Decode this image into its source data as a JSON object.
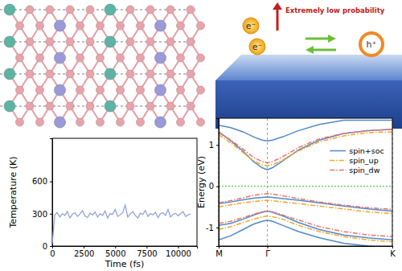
{
  "chart_data": [
    {
      "type": "line",
      "x_label": "Time (fs)",
      "y_label": "Temperature (K)",
      "x": [
        0,
        200,
        400,
        600,
        800,
        1000,
        1200,
        1400,
        1600,
        1800,
        2000,
        2200,
        2400,
        2600,
        2800,
        3000,
        3200,
        3400,
        3600,
        3800,
        4000,
        4200,
        4400,
        4600,
        4800,
        5000,
        5200,
        5400,
        5600,
        5800,
        6000,
        6200,
        6400,
        6600,
        6800,
        7000,
        7200,
        7400,
        7600,
        7800,
        8000,
        8200,
        8400,
        8600,
        8800,
        9000,
        9200,
        9400,
        9600,
        9800,
        10000,
        10200,
        10400,
        10600,
        10800,
        11000
      ],
      "values": [
        20,
        290,
        310,
        270,
        300,
        285,
        320,
        260,
        295,
        310,
        275,
        300,
        330,
        280,
        265,
        305,
        290,
        315,
        270,
        300,
        285,
        325,
        260,
        300,
        295,
        340,
        275,
        290,
        310,
        380,
        270,
        300,
        320,
        285,
        260,
        305,
        295,
        330,
        275,
        300,
        290,
        315,
        265,
        300,
        310,
        285,
        340,
        270,
        295,
        305,
        280,
        300,
        320,
        275,
        290,
        300
      ],
      "color": "#8c9ed6",
      "xlim": [
        0,
        11500
      ],
      "xticks": [
        0,
        2500,
        5000,
        7500,
        10000
      ],
      "ylim": [
        0,
        1000
      ],
      "yticks": [
        0,
        300,
        600
      ],
      "grid": false
    },
    {
      "type": "line",
      "y_label": "Energy (eV)",
      "x": [
        0,
        0.07,
        0.14,
        0.2,
        0.25,
        0.28,
        0.31,
        0.37,
        0.46,
        0.58,
        0.72,
        0.86,
        1.0
      ],
      "xlim": [
        0,
        1
      ],
      "xticks": [
        {
          "value": 0,
          "label": "M"
        },
        {
          "value": 0.28,
          "label": "Γ"
        },
        {
          "value": 1,
          "label": "K"
        }
      ],
      "ylim": [
        -1.45,
        1.65
      ],
      "yticks": [
        -1,
        0,
        1
      ],
      "grid": "x",
      "legend": "right",
      "fermi_level": 0,
      "series": [
        {
          "name": "spin+soc",
          "color": "#4f8ac9",
          "line_style": "solid",
          "values": [
            [
              1.32,
              1.1,
              0.85,
              0.6,
              0.45,
              0.4,
              0.45,
              0.62,
              0.88,
              1.12,
              1.28,
              1.35,
              1.38
            ],
            [
              1.48,
              1.42,
              1.32,
              1.2,
              1.12,
              1.1,
              1.12,
              1.2,
              1.35,
              1.5,
              1.6,
              1.6,
              1.6
            ],
            [
              -0.42,
              -0.38,
              -0.33,
              -0.29,
              -0.27,
              -0.26,
              -0.27,
              -0.3,
              -0.34,
              -0.4,
              -0.48,
              -0.55,
              -0.6
            ],
            [
              -0.95,
              -0.9,
              -0.8,
              -0.7,
              -0.63,
              -0.6,
              -0.63,
              -0.72,
              -0.88,
              -1.05,
              -1.18,
              -1.25,
              -1.3
            ],
            [
              -1.3,
              -1.2,
              -1.05,
              -0.92,
              -0.85,
              -0.82,
              -0.85,
              -0.95,
              -1.1,
              -1.25,
              -1.38,
              -1.45,
              -1.5
            ]
          ]
        },
        {
          "name": "spin_up",
          "color": "#f5a623",
          "line_style": "dash-dot",
          "values": [
            [
              1.25,
              1.05,
              0.82,
              0.62,
              0.52,
              0.5,
              0.52,
              0.64,
              0.86,
              1.08,
              1.22,
              1.3,
              1.32
            ],
            [
              -0.5,
              -0.45,
              -0.4,
              -0.37,
              -0.35,
              -0.34,
              -0.35,
              -0.38,
              -0.42,
              -0.48,
              -0.55,
              -0.62,
              -0.66
            ],
            [
              -1.05,
              -0.98,
              -0.88,
              -0.8,
              -0.74,
              -0.72,
              -0.74,
              -0.8,
              -0.95,
              -1.1,
              -1.22,
              -1.3,
              -1.35
            ]
          ]
        },
        {
          "name": "spin_dw",
          "color": "#ef6f6c",
          "line_style": "dash-dot",
          "values": [
            [
              1.3,
              1.12,
              0.9,
              0.7,
              0.6,
              0.57,
              0.6,
              0.72,
              0.94,
              1.15,
              1.28,
              1.35,
              1.38
            ],
            [
              -0.4,
              -0.35,
              -0.28,
              -0.22,
              -0.19,
              -0.18,
              -0.19,
              -0.23,
              -0.3,
              -0.38,
              -0.46,
              -0.52,
              -0.56
            ],
            [
              -0.9,
              -0.85,
              -0.76,
              -0.68,
              -0.62,
              -0.6,
              -0.62,
              -0.7,
              -0.82,
              -0.98,
              -1.1,
              -1.18,
              -1.22
            ]
          ]
        }
      ]
    }
  ],
  "schematic": {
    "electrons": [
      "e⁻",
      "e⁻"
    ],
    "hole": "h⁺",
    "arrow_label": "Extremely low probability"
  }
}
